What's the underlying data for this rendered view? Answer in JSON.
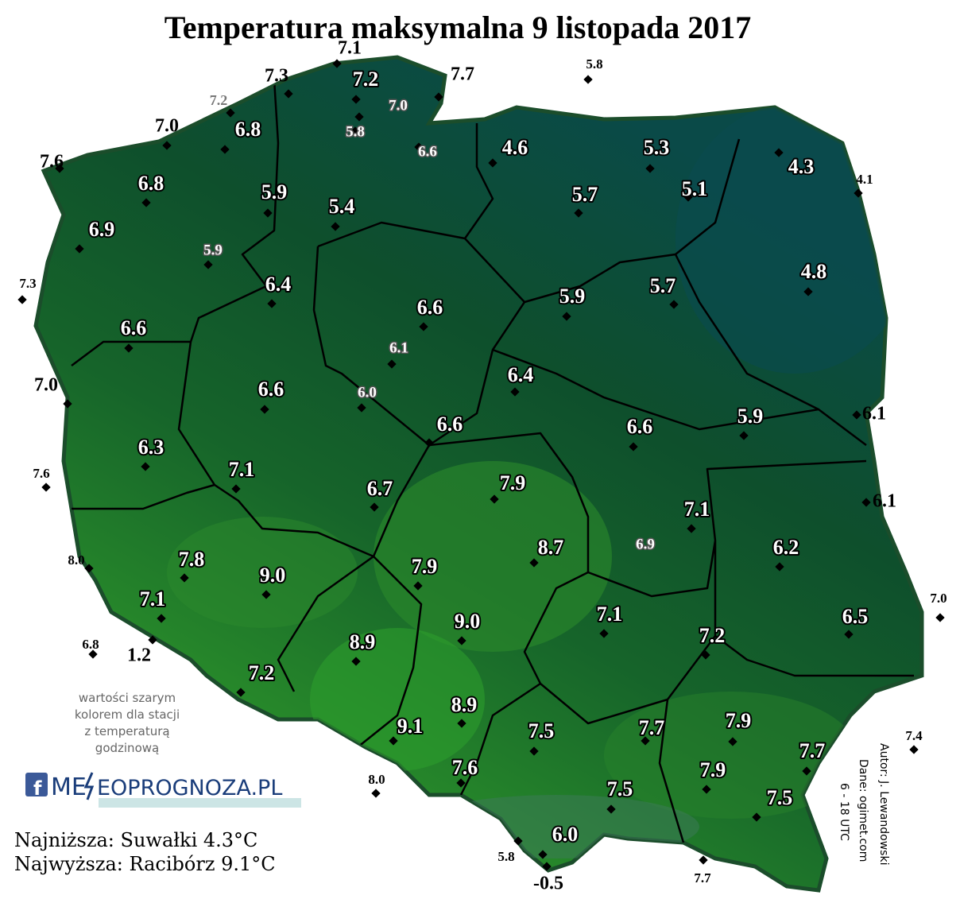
{
  "title": "Temperatura maksymalna 9 listopada 2017",
  "stations": [
    "7.1",
    "7.3",
    "7.2",
    "7.7",
    "5.8",
    "7.2",
    "7.0",
    "5.8",
    "6.8",
    "7.0",
    "6.6",
    "4.6",
    "5.3",
    "4.3",
    "7.6",
    "6.8",
    "5.9",
    "5.4",
    "5.7",
    "5.1",
    "4.1",
    "6.9",
    "5.9",
    "6.4",
    "4.8",
    "7.3",
    "6.6",
    "5.9",
    "5.7",
    "6.1",
    "6.6",
    "6.4",
    "7.0",
    "6.6",
    "6.0",
    "6.6",
    "6.6",
    "5.9",
    "6.1",
    "6.3",
    "7.1",
    "7.6",
    "7.9",
    "6.7",
    "6.1",
    "7.1",
    "6.9",
    "8.7",
    "6.2",
    "8.0",
    "7.8",
    "9.0",
    "7.9",
    "7.1",
    "7.1",
    "9.0",
    "6.5",
    "7.0",
    "7.2",
    "6.8",
    "1.2",
    "8.9",
    "7.2",
    "8.9",
    "9.1",
    "7.5",
    "7.7",
    "7.9",
    "7.4",
    "7.7",
    "7.6",
    "8.0",
    "7.9",
    "7.5",
    "7.5",
    "6.0",
    "5.8",
    "-0.5",
    "7.7"
  ],
  "note": [
    "wartości szarym",
    "kolorem dla stacji",
    "z temperaturą",
    "godzinową"
  ],
  "logo": {
    "left": "ME",
    "right": "EOPROGNOZA.PL"
  },
  "summary": [
    "Najniższa: Suwałki 4.3°C",
    "Najwyższa: Racibórz 9.1°C"
  ],
  "credits": [
    "Autor: J. Lewandowski",
    "Dane: ogimet.com",
    "6 - 18 UTC"
  ]
}
